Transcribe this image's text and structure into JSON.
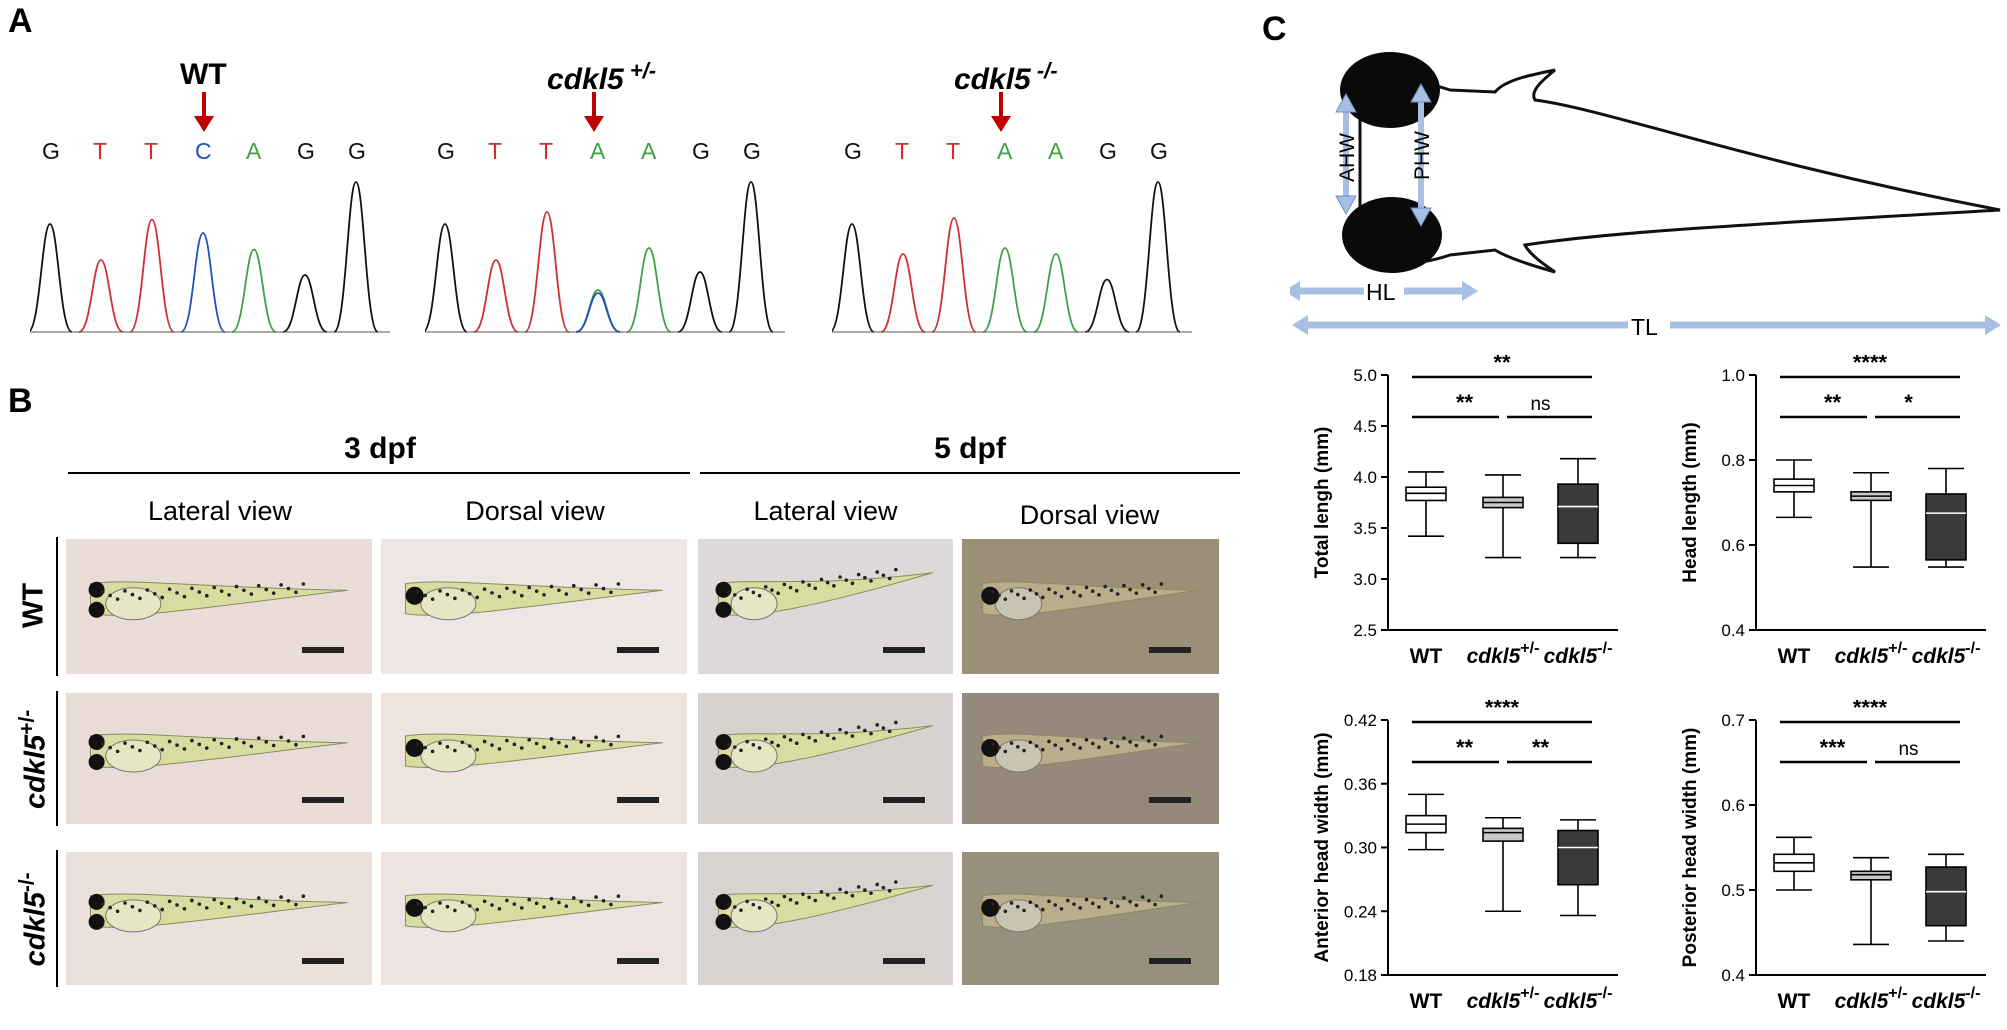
{
  "panels": {
    "a": "A",
    "b": "B",
    "c": "C"
  },
  "sequencing": {
    "traces": [
      {
        "label": "WT",
        "sup": "",
        "bases": [
          "G",
          "T",
          "T",
          "C",
          "A",
          "G",
          "G"
        ]
      },
      {
        "label": "cdkl5",
        "sup": "+/-",
        "bases": [
          "G",
          "T",
          "T",
          "A",
          "A",
          "G",
          "G"
        ]
      },
      {
        "label": "cdkl5",
        "sup": "-/-",
        "bases": [
          "G",
          "T",
          "T",
          "A",
          "A",
          "G",
          "G"
        ]
      }
    ],
    "base_colors": {
      "G": "#111111",
      "T": "#d03030",
      "C": "#2050c0",
      "A": "#40a040"
    },
    "arrow_color": "#c00000"
  },
  "images": {
    "time_headers": [
      "3 dpf",
      "5 dpf"
    ],
    "views": [
      "Lateral view",
      "Dorsal view",
      "Lateral view",
      "Dorsal view"
    ],
    "rows": [
      {
        "label": "WT",
        "sup": ""
      },
      {
        "label": "cdkl5",
        "sup": "+/-"
      },
      {
        "label": "cdkl5",
        "sup": "-/-"
      }
    ]
  },
  "diagram": {
    "labels": {
      "ahw": "AHW",
      "phw": "PHW",
      "hl": "HL",
      "tl": "TL"
    },
    "arrow_color": "#a7bfe3"
  },
  "chart_data": [
    {
      "type": "box",
      "ylabel": "Total lengh (mm)",
      "ylim": [
        2.5,
        5.0
      ],
      "yticks": [
        "2.5",
        "3.0",
        "3.5",
        "4.0",
        "4.5",
        "5.0"
      ],
      "categories": [
        {
          "main": "WT",
          "sup": ""
        },
        {
          "main": "cdkl5",
          "sup": "+/-"
        },
        {
          "main": "cdkl5",
          "sup": "-/-"
        }
      ],
      "boxes": [
        {
          "min": 3.42,
          "q1": 3.77,
          "median": 3.84,
          "q3": 3.9,
          "max": 4.05,
          "fill": "#ffffff"
        },
        {
          "min": 3.21,
          "q1": 3.7,
          "median": 3.75,
          "q3": 3.8,
          "max": 4.02,
          "fill": "#c8c8c8"
        },
        {
          "min": 3.21,
          "q1": 3.35,
          "median": 3.71,
          "q3": 3.93,
          "max": 4.18,
          "fill": "#3a3a3a"
        }
      ],
      "significance": [
        {
          "from": 0,
          "to": 2,
          "label": "**"
        },
        {
          "from": 0,
          "to": 1,
          "label": "**"
        },
        {
          "from": 1,
          "to": 2,
          "label": "ns"
        }
      ]
    },
    {
      "type": "box",
      "ylabel": "Head length (mm)",
      "ylim": [
        0.4,
        1.0
      ],
      "yticks": [
        "0.4",
        "0.6",
        "0.8",
        "1.0"
      ],
      "categories": [
        {
          "main": "WT",
          "sup": ""
        },
        {
          "main": "cdkl5",
          "sup": "+/-"
        },
        {
          "main": "cdkl5",
          "sup": "-/-"
        }
      ],
      "boxes": [
        {
          "min": 0.665,
          "q1": 0.725,
          "median": 0.74,
          "q3": 0.755,
          "max": 0.8,
          "fill": "#ffffff"
        },
        {
          "min": 0.548,
          "q1": 0.705,
          "median": 0.715,
          "q3": 0.725,
          "max": 0.77,
          "fill": "#c8c8c8"
        },
        {
          "min": 0.548,
          "q1": 0.565,
          "median": 0.675,
          "q3": 0.72,
          "max": 0.78,
          "fill": "#3a3a3a"
        }
      ],
      "significance": [
        {
          "from": 0,
          "to": 2,
          "label": "****"
        },
        {
          "from": 0,
          "to": 1,
          "label": "**"
        },
        {
          "from": 1,
          "to": 2,
          "label": "*"
        }
      ]
    },
    {
      "type": "box",
      "ylabel": "Anterior head width (mm)",
      "ylim": [
        0.18,
        0.42
      ],
      "yticks": [
        "0.18",
        "0.24",
        "0.30",
        "0.36",
        "0.42"
      ],
      "categories": [
        {
          "main": "WT",
          "sup": ""
        },
        {
          "main": "cdkl5",
          "sup": "+/-"
        },
        {
          "main": "cdkl5",
          "sup": "-/-"
        }
      ],
      "boxes": [
        {
          "min": 0.298,
          "q1": 0.314,
          "median": 0.322,
          "q3": 0.33,
          "max": 0.35,
          "fill": "#ffffff"
        },
        {
          "min": 0.24,
          "q1": 0.306,
          "median": 0.314,
          "q3": 0.318,
          "max": 0.328,
          "fill": "#c8c8c8"
        },
        {
          "min": 0.236,
          "q1": 0.265,
          "median": 0.3,
          "q3": 0.316,
          "max": 0.326,
          "fill": "#3a3a3a"
        }
      ],
      "significance": [
        {
          "from": 0,
          "to": 2,
          "label": "****"
        },
        {
          "from": 0,
          "to": 1,
          "label": "**"
        },
        {
          "from": 1,
          "to": 2,
          "label": "**"
        }
      ]
    },
    {
      "type": "box",
      "ylabel": "Posterior head width (mm)",
      "ylim": [
        0.4,
        0.7
      ],
      "yticks": [
        "0.4",
        "0.5",
        "0.6",
        "0.7"
      ],
      "categories": [
        {
          "main": "WT",
          "sup": ""
        },
        {
          "main": "cdkl5",
          "sup": "+/-"
        },
        {
          "main": "cdkl5",
          "sup": "-/-"
        }
      ],
      "boxes": [
        {
          "min": 0.5,
          "q1": 0.522,
          "median": 0.532,
          "q3": 0.542,
          "max": 0.562,
          "fill": "#ffffff"
        },
        {
          "min": 0.436,
          "q1": 0.512,
          "median": 0.518,
          "q3": 0.522,
          "max": 0.538,
          "fill": "#c8c8c8"
        },
        {
          "min": 0.44,
          "q1": 0.458,
          "median": 0.498,
          "q3": 0.527,
          "max": 0.542,
          "fill": "#3a3a3a"
        }
      ],
      "significance": [
        {
          "from": 0,
          "to": 2,
          "label": "****"
        },
        {
          "from": 0,
          "to": 1,
          "label": "***"
        },
        {
          "from": 1,
          "to": 2,
          "label": "ns"
        }
      ]
    }
  ]
}
